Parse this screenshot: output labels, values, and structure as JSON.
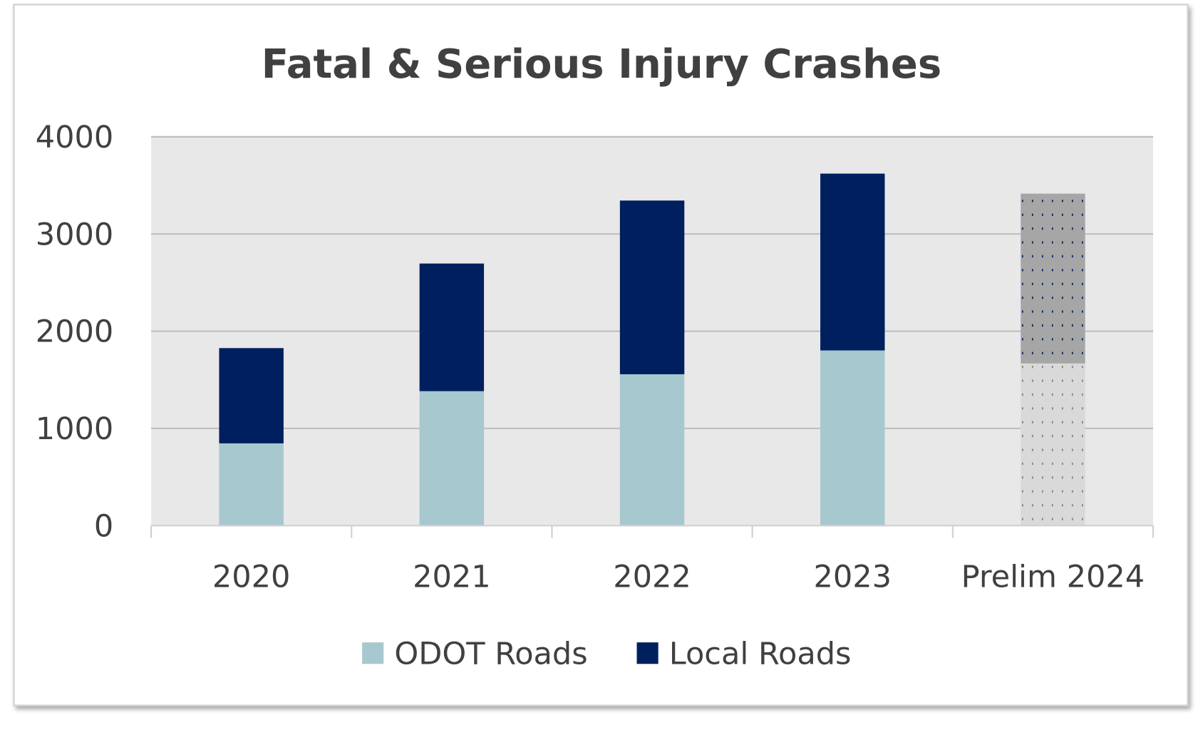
{
  "chart_data": {
    "type": "bar",
    "stacked": true,
    "title": "Fatal & Serious Injury Crashes",
    "xlabel": "",
    "ylabel": "",
    "categories": [
      "2020",
      "2021",
      "2022",
      "2023",
      "Prelim 2024"
    ],
    "series": [
      {
        "name": "ODOT Roads",
        "color": "#a7c8ce",
        "values": [
          846,
          1383,
          1557,
          1802,
          1668
        ]
      },
      {
        "name": "Local Roads",
        "color": "#001f5e",
        "values": [
          980,
          1313,
          1787,
          1819,
          1747
        ]
      }
    ],
    "preliminary_category": "Prelim 2024",
    "preliminary_colors": {
      "ODOT Roads": "#d9d9d9",
      "Local Roads": "#a6a6a6"
    },
    "ylim": [
      0,
      4000
    ],
    "yticks": [
      "0",
      "1000",
      "2000",
      "3000",
      "4000"
    ],
    "grid": true,
    "plot_background": "#e8e8e8",
    "legend_position": "bottom"
  }
}
